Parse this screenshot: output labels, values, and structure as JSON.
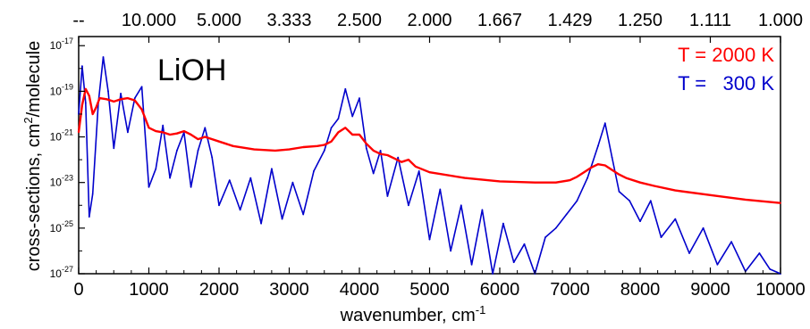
{
  "chart_data": {
    "type": "line",
    "title": "LiOH",
    "xlabel": "wavenumber, cm",
    "xlabel_superscript": "-1",
    "ylabel": "cross-sections, cm",
    "ylabel_superscript": "2",
    "ylabel_suffix": "/molecule",
    "xlim": [
      0,
      10000
    ],
    "ylim_log10": [
      -27,
      -16.6
    ],
    "y_scale": "log",
    "x_ticks": [
      0,
      1000,
      2000,
      3000,
      4000,
      5000,
      6000,
      7000,
      8000,
      9000,
      10000
    ],
    "x_tick_labels": [
      "0",
      "1000",
      "2000",
      "3000",
      "4000",
      "5000",
      "6000",
      "7000",
      "8000",
      "9000",
      "10000"
    ],
    "y_ticks": [
      -27,
      -25,
      -23,
      -21,
      -19,
      -17
    ],
    "y_tick_labels": [
      {
        "base": "10",
        "exp": "-27"
      },
      {
        "base": "10",
        "exp": "-25"
      },
      {
        "base": "10",
        "exp": "-23"
      },
      {
        "base": "10",
        "exp": "-21"
      },
      {
        "base": "10",
        "exp": "-19"
      },
      {
        "base": "10",
        "exp": "-17"
      }
    ],
    "top_axis_ticks": [
      0,
      1000,
      2000,
      3000,
      4000,
      5000,
      6000,
      7000,
      8000,
      9000,
      10000
    ],
    "top_axis_labels": [
      "--",
      "10.000",
      "5.000",
      "3.333",
      "2.500",
      "2.000",
      "1.667",
      "1.429",
      "1.250",
      "1.111",
      "1.000"
    ],
    "legend_position": "top-right",
    "grid": false,
    "series": [
      {
        "name": "T = 2000 K",
        "color": "#ff0000",
        "x": [
          0,
          50,
          100,
          150,
          200,
          250,
          300,
          400,
          500,
          600,
          700,
          800,
          900,
          1000,
          1100,
          1200,
          1300,
          1400,
          1500,
          1600,
          1700,
          1800,
          2000,
          2200,
          2500,
          2800,
          3000,
          3200,
          3400,
          3500,
          3600,
          3700,
          3800,
          3900,
          4000,
          4100,
          4200,
          4300,
          4400,
          4500,
          4600,
          4700,
          4800,
          5000,
          5500,
          6000,
          6500,
          6800,
          7000,
          7100,
          7200,
          7300,
          7400,
          7500,
          7600,
          7700,
          7800,
          8000,
          8200,
          8500,
          9000,
          9500,
          10000
        ],
        "log10_y": [
          -20.8,
          -19.6,
          -18.9,
          -19.2,
          -20.0,
          -19.7,
          -19.3,
          -19.35,
          -19.45,
          -19.35,
          -19.3,
          -19.4,
          -19.8,
          -20.6,
          -20.75,
          -20.8,
          -20.9,
          -20.85,
          -20.75,
          -20.9,
          -21.1,
          -21.0,
          -21.2,
          -21.4,
          -21.55,
          -21.6,
          -21.55,
          -21.45,
          -21.4,
          -21.35,
          -21.2,
          -20.8,
          -20.6,
          -20.9,
          -20.9,
          -21.3,
          -21.6,
          -21.75,
          -21.8,
          -21.95,
          -22.1,
          -22.0,
          -22.3,
          -22.55,
          -22.8,
          -22.95,
          -23.0,
          -23.0,
          -22.9,
          -22.75,
          -22.55,
          -22.35,
          -22.2,
          -22.25,
          -22.45,
          -22.65,
          -22.8,
          -23.0,
          -23.15,
          -23.35,
          -23.55,
          -23.75,
          -23.9
        ]
      },
      {
        "name": "T =   300 K",
        "color": "#0000cc",
        "x": [
          0,
          50,
          100,
          150,
          200,
          280,
          350,
          420,
          500,
          600,
          700,
          800,
          900,
          1000,
          1100,
          1200,
          1300,
          1400,
          1500,
          1600,
          1700,
          1800,
          1900,
          2000,
          2150,
          2300,
          2450,
          2600,
          2750,
          2900,
          3050,
          3200,
          3350,
          3500,
          3600,
          3700,
          3800,
          3900,
          4000,
          4100,
          4200,
          4300,
          4400,
          4550,
          4700,
          4850,
          5000,
          5150,
          5300,
          5450,
          5600,
          5750,
          5900,
          6050,
          6200,
          6350,
          6500,
          6650,
          6800,
          6950,
          7100,
          7250,
          7400,
          7500,
          7600,
          7700,
          7850,
          8000,
          8150,
          8300,
          8500,
          8700,
          8900,
          9100,
          9300,
          9500,
          9700,
          9850,
          10000
        ],
        "log10_y": [
          -20.0,
          -17.9,
          -19.5,
          -24.5,
          -23.5,
          -19.5,
          -17.5,
          -19.0,
          -21.5,
          -19.1,
          -20.8,
          -19.3,
          -18.8,
          -23.2,
          -22.4,
          -20.5,
          -22.8,
          -21.6,
          -20.8,
          -23.2,
          -21.6,
          -20.6,
          -21.9,
          -24.0,
          -22.9,
          -24.2,
          -22.8,
          -24.8,
          -22.4,
          -24.6,
          -23.0,
          -24.4,
          -22.5,
          -21.6,
          -20.6,
          -20.2,
          -18.9,
          -20.1,
          -19.3,
          -21.5,
          -22.6,
          -21.6,
          -23.6,
          -21.9,
          -24.0,
          -22.5,
          -25.5,
          -23.3,
          -26.0,
          -24.0,
          -26.6,
          -24.2,
          -27.0,
          -24.8,
          -26.5,
          -25.7,
          -27.0,
          -25.4,
          -25.0,
          -24.4,
          -23.8,
          -22.8,
          -21.4,
          -20.4,
          -21.9,
          -23.4,
          -23.8,
          -24.7,
          -23.8,
          -25.4,
          -24.6,
          -26.1,
          -25.0,
          -26.6,
          -25.6,
          -26.9,
          -26.1,
          -26.8,
          -27.0
        ]
      }
    ]
  }
}
